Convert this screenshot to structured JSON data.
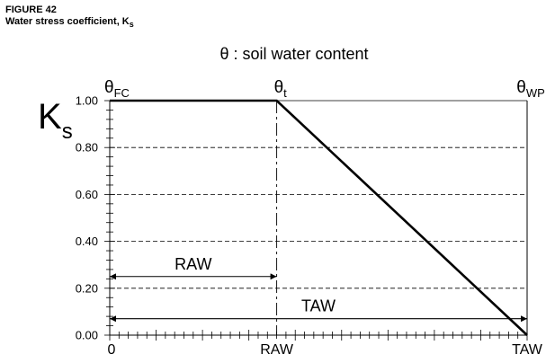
{
  "figure": {
    "label": "FIGURE 42",
    "title": "Water stress coefficient, K",
    "title_sub": "s"
  },
  "chart_data": {
    "type": "line",
    "title": "θ : soil water content",
    "ylabel": "K",
    "ylabel_sub": "s",
    "xlim": [
      0,
      1
    ],
    "ylim": [
      0,
      1
    ],
    "x_tick_labels": [
      "0",
      "RAW",
      "TAW"
    ],
    "y_ticks": [
      0.0,
      0.2,
      0.4,
      0.6,
      0.8,
      1.0
    ],
    "y_tick_labels": [
      "0.00",
      "0.20",
      "0.40",
      "0.60",
      "0.80",
      "1.00"
    ],
    "grid": "horizontal dashed",
    "top_labels": [
      {
        "symbol": "θ",
        "sub": "FC",
        "x": 0.0
      },
      {
        "symbol": "θ",
        "sub": "t",
        "x": 0.4
      },
      {
        "symbol": "θ",
        "sub": "WP",
        "x": 1.0
      }
    ],
    "series": [
      {
        "x": [
          0.0,
          0.4,
          1.0
        ],
        "y": [
          1.0,
          1.0,
          0.0
        ]
      }
    ],
    "annotations": [
      {
        "text": "RAW",
        "x_from": 0.0,
        "x_to": 0.4,
        "y": 0.25
      },
      {
        "text": "TAW",
        "x_from": 0.0,
        "x_to": 1.0,
        "y": 0.07
      }
    ]
  }
}
